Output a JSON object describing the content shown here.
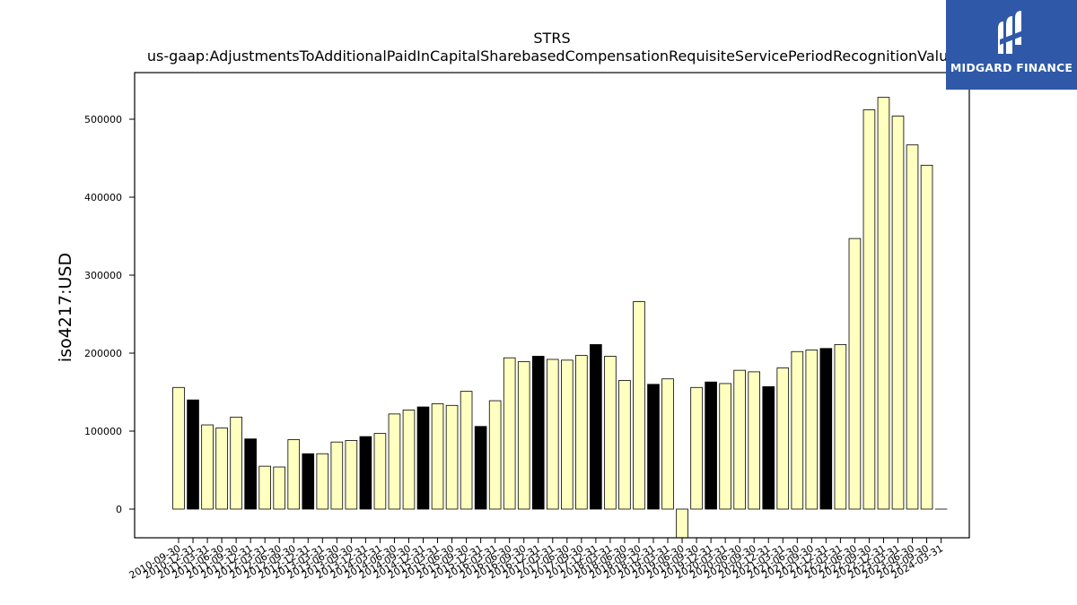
{
  "chart_data": {
    "type": "bar",
    "title": "STRS",
    "subtitle": "us-gaap:AdjustmentsToAdditionalPaidInCapitalSharebasedCompensationRequisiteServicePeriodRecognitionValue",
    "xlabel": "",
    "ylabel": "iso4217:USD",
    "ylim": [
      -37000,
      560000
    ],
    "yticks": [
      0,
      100000,
      200000,
      300000,
      400000,
      500000
    ],
    "grid": false,
    "colors": {
      "light_bar": "#ffffc0",
      "dark_bar": "#000000",
      "edge": "#000000"
    },
    "categories": [
      "2010-09-30",
      "2010-12-31",
      "2011-03-31",
      "2011-06-30",
      "2011-09-30",
      "2011-12-31",
      "2012-03-31",
      "2012-06-30",
      "2012-09-30",
      "2012-12-31",
      "2013-03-31",
      "2013-06-30",
      "2013-09-30",
      "2013-12-31",
      "2014-03-31",
      "2014-06-30",
      "2014-09-30",
      "2014-12-31",
      "2015-03-31",
      "2015-06-30",
      "2015-09-30",
      "2015-12-31",
      "2016-03-31",
      "2016-06-30",
      "2016-09-30",
      "2016-12-31",
      "2017-03-31",
      "2017-06-30",
      "2017-09-30",
      "2017-12-31",
      "2018-03-31",
      "2018-06-30",
      "2018-09-30",
      "2018-12-31",
      "2019-03-31",
      "2019-06-30",
      "2019-09-30",
      "2019-12-31",
      "2020-03-31",
      "2020-06-30",
      "2020-09-30",
      "2020-12-31",
      "2021-03-31",
      "2021-06-30",
      "2021-09-30",
      "2021-12-31",
      "2022-03-31",
      "2022-06-30",
      "2022-09-30",
      "2022-12-31",
      "2023-03-31",
      "2023-06-30",
      "2023-09-30",
      "2024-03-31"
    ],
    "values": [
      156000,
      140000,
      108000,
      104000,
      118000,
      90000,
      55000,
      54000,
      89000,
      71000,
      71000,
      86000,
      88000,
      93000,
      97000,
      122000,
      127000,
      131000,
      135000,
      133000,
      151000,
      106000,
      139000,
      194000,
      189000,
      196000,
      192000,
      191000,
      197000,
      211000,
      196000,
      165000,
      266000,
      160000,
      167000,
      -37000,
      156000,
      163000,
      161000,
      178000,
      176000,
      157000,
      181000,
      202000,
      204000,
      206000,
      211000,
      347000,
      512000,
      528000,
      504000,
      467000,
      441000,
      0
    ],
    "dark_indices": [
      1,
      5,
      9,
      13,
      17,
      21,
      25,
      29,
      33,
      37,
      41,
      45
    ]
  },
  "logo": {
    "text": "MIDGARD FINANCE"
  }
}
